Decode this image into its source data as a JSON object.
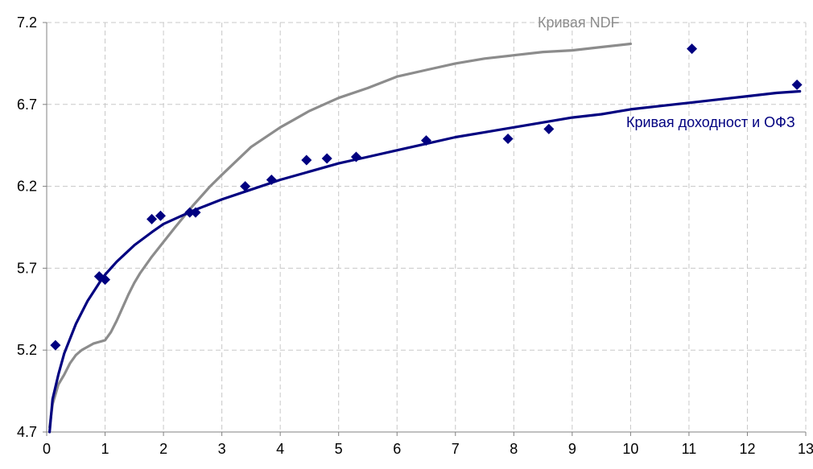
{
  "chart_data": {
    "type": "line",
    "title": "",
    "xlabel": "",
    "ylabel": "",
    "xlim": [
      0,
      13
    ],
    "ylim": [
      4.7,
      7.2
    ],
    "x_ticks": [
      0,
      1,
      2,
      3,
      4,
      5,
      6,
      7,
      8,
      9,
      10,
      11,
      12,
      13
    ],
    "y_ticks": [
      4.7,
      5.2,
      5.7,
      6.2,
      6.7,
      7.2
    ],
    "grid": true,
    "grid_style": "dashed",
    "legend": "none",
    "colors": {
      "ofz_curve": "#000080",
      "ndf_curve": "#8c8c8c",
      "ofz_points": "#000080",
      "grid": "#c8c8c8",
      "axis": "#808080"
    },
    "series": [
      {
        "name": "Кривая NDF",
        "kind": "line",
        "color": "#8c8c8c",
        "x": [
          0.05,
          0.1,
          0.2,
          0.3,
          0.4,
          0.5,
          0.6,
          0.7,
          0.8,
          0.9,
          1.0,
          1.1,
          1.2,
          1.3,
          1.4,
          1.5,
          1.6,
          1.8,
          2.0,
          2.2,
          2.5,
          2.8,
          3.0,
          3.5,
          4.0,
          4.2,
          4.5,
          5.0,
          5.5,
          6.0,
          6.5,
          7.0,
          7.5,
          8.0,
          8.5,
          9.0,
          9.5,
          10.0
        ],
        "y": [
          4.73,
          4.87,
          4.99,
          5.05,
          5.12,
          5.17,
          5.2,
          5.22,
          5.24,
          5.25,
          5.26,
          5.31,
          5.38,
          5.46,
          5.54,
          5.61,
          5.67,
          5.77,
          5.86,
          5.95,
          6.08,
          6.2,
          6.27,
          6.44,
          6.56,
          6.6,
          6.66,
          6.74,
          6.8,
          6.87,
          6.91,
          6.95,
          6.98,
          7.0,
          7.02,
          7.03,
          7.05,
          7.07
        ]
      },
      {
        "name": "Кривая доходности ОФЗ",
        "kind": "line",
        "color": "#000080",
        "x": [
          0.05,
          0.1,
          0.2,
          0.3,
          0.5,
          0.7,
          0.9,
          1.0,
          1.2,
          1.5,
          1.8,
          2.0,
          2.5,
          3.0,
          3.5,
          4.0,
          4.5,
          5.0,
          5.5,
          6.0,
          6.5,
          7.0,
          7.5,
          8.0,
          8.5,
          9.0,
          9.5,
          10.0,
          10.5,
          11.0,
          11.5,
          12.0,
          12.5,
          12.9
        ],
        "y": [
          4.7,
          4.9,
          5.05,
          5.18,
          5.36,
          5.5,
          5.61,
          5.66,
          5.74,
          5.84,
          5.92,
          5.97,
          6.05,
          6.12,
          6.18,
          6.24,
          6.29,
          6.34,
          6.38,
          6.42,
          6.46,
          6.5,
          6.53,
          6.56,
          6.59,
          6.62,
          6.64,
          6.67,
          6.69,
          6.71,
          6.73,
          6.75,
          6.77,
          6.78
        ]
      },
      {
        "name": "",
        "kind": "points",
        "color": "#000080",
        "x": [
          0.15,
          0.9,
          1.0,
          1.8,
          1.95,
          2.45,
          2.55,
          3.4,
          3.85,
          4.45,
          4.8,
          5.3,
          6.5,
          7.9,
          8.6,
          11.05,
          12.85
        ],
        "y": [
          5.23,
          5.65,
          5.63,
          6.0,
          6.02,
          6.04,
          6.04,
          6.2,
          6.24,
          6.36,
          6.37,
          6.38,
          6.48,
          6.49,
          6.55,
          7.04,
          6.82
        ]
      }
    ],
    "annotations": [
      {
        "text": "Кривая NDF",
        "series": "Кривая NDF"
      },
      {
        "text": "Кривая доходност и ОФЗ",
        "series": "Кривая доходности ОФЗ"
      }
    ]
  }
}
